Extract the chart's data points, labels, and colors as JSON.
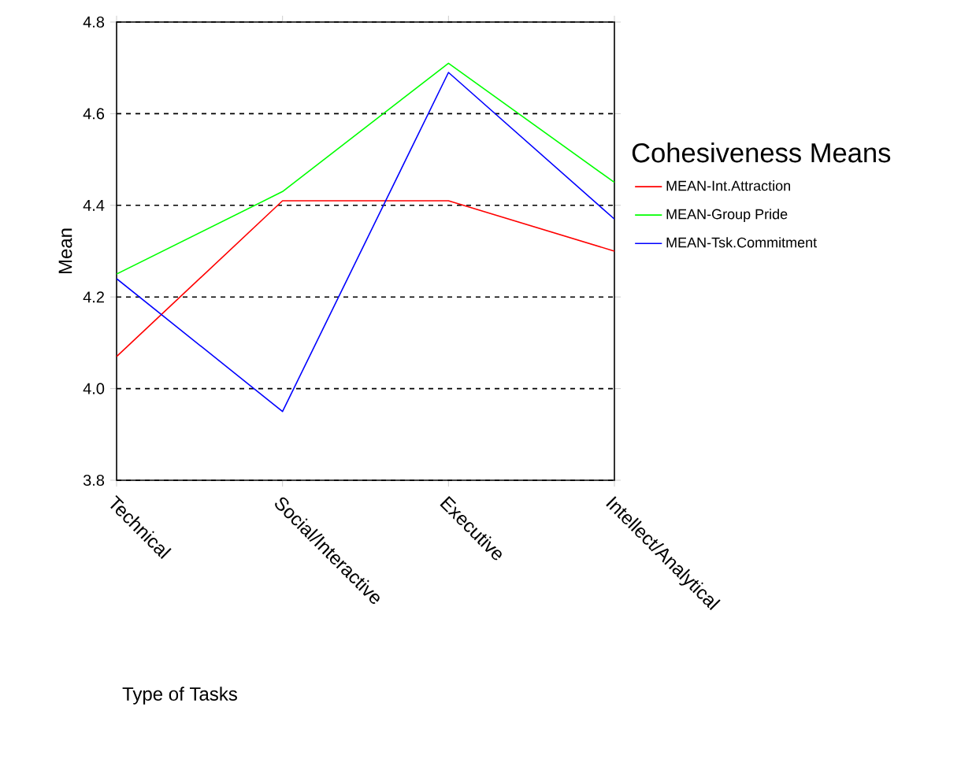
{
  "chart_data": {
    "type": "line",
    "xlabel": "Type of Tasks",
    "ylabel": "Mean",
    "legend_title": "Cohesiveness Means",
    "categories": [
      "Technical",
      "Social/Interactive",
      "Executive",
      "Intellect/Analytical"
    ],
    "series": [
      {
        "name": "MEAN-Int.Attraction",
        "color": "#ff0000",
        "values": [
          4.07,
          4.41,
          4.41,
          4.3
        ]
      },
      {
        "name": "MEAN-Group Pride",
        "color": "#00ff00",
        "values": [
          4.25,
          4.43,
          4.71,
          4.45
        ]
      },
      {
        "name": "MEAN-Tsk.Commitment",
        "color": "#0000ff",
        "values": [
          4.24,
          3.95,
          4.69,
          4.37
        ]
      }
    ],
    "ylim": [
      3.8,
      4.8
    ],
    "yticks": [
      3.8,
      {
        "value": 4.0,
        "label": "4.0"
      },
      4.2,
      4.4,
      4.6,
      4.8
    ],
    "grid": "y",
    "legend": "right"
  }
}
